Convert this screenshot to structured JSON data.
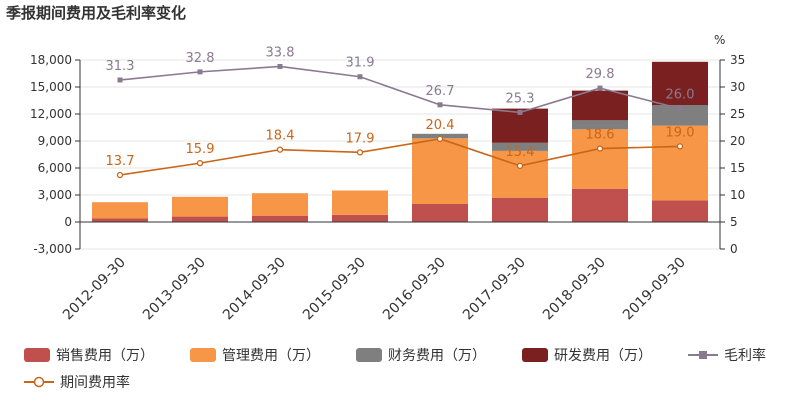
{
  "title": "季报期间费用及毛利率变化",
  "chart_data": {
    "type": "bar",
    "stacked": true,
    "categories": [
      "2012-09-30",
      "2013-09-30",
      "2014-09-30",
      "2015-09-30",
      "2016-09-30",
      "2017-09-30",
      "2018-09-30",
      "2019-09-30"
    ],
    "series": [
      {
        "name": "销售费用（万）",
        "axis": "left",
        "color": "#c0504d",
        "values": [
          400,
          600,
          700,
          800,
          2000,
          2700,
          3700,
          2400
        ]
      },
      {
        "name": "管理费用（万）",
        "axis": "left",
        "color": "#f79646",
        "values": [
          1800,
          2200,
          2500,
          2700,
          7300,
          5200,
          6600,
          8300
        ]
      },
      {
        "name": "财务费用（万）",
        "axis": "left",
        "color": "#7f7f7f",
        "values": [
          0,
          0,
          0,
          0,
          500,
          900,
          1000,
          2300
        ]
      },
      {
        "name": "研发费用（万）",
        "axis": "left",
        "color": "#7b2020",
        "values": [
          0,
          0,
          0,
          0,
          0,
          3800,
          3300,
          4800
        ]
      },
      {
        "name": "毛利率",
        "type": "line",
        "axis": "right",
        "color": "#8a7a90",
        "values": [
          31.3,
          32.8,
          33.8,
          31.9,
          26.7,
          25.3,
          29.8,
          26.0
        ]
      },
      {
        "name": "期间费用率",
        "type": "line",
        "axis": "right",
        "color": "#c8661a",
        "values": [
          13.7,
          15.9,
          18.4,
          17.9,
          20.4,
          15.4,
          18.6,
          19.0
        ]
      }
    ],
    "y_left": {
      "min": -3000,
      "max": 18000,
      "ticks": [
        "-3,000",
        "0",
        "3,000",
        "6,000",
        "9,000",
        "12,000",
        "15,000",
        "18,000"
      ]
    },
    "y_right": {
      "min": 0,
      "max": 35,
      "label": "%",
      "ticks": [
        "0",
        "5",
        "10",
        "15",
        "20",
        "25",
        "30",
        "35"
      ]
    },
    "legend_position": "bottom"
  }
}
